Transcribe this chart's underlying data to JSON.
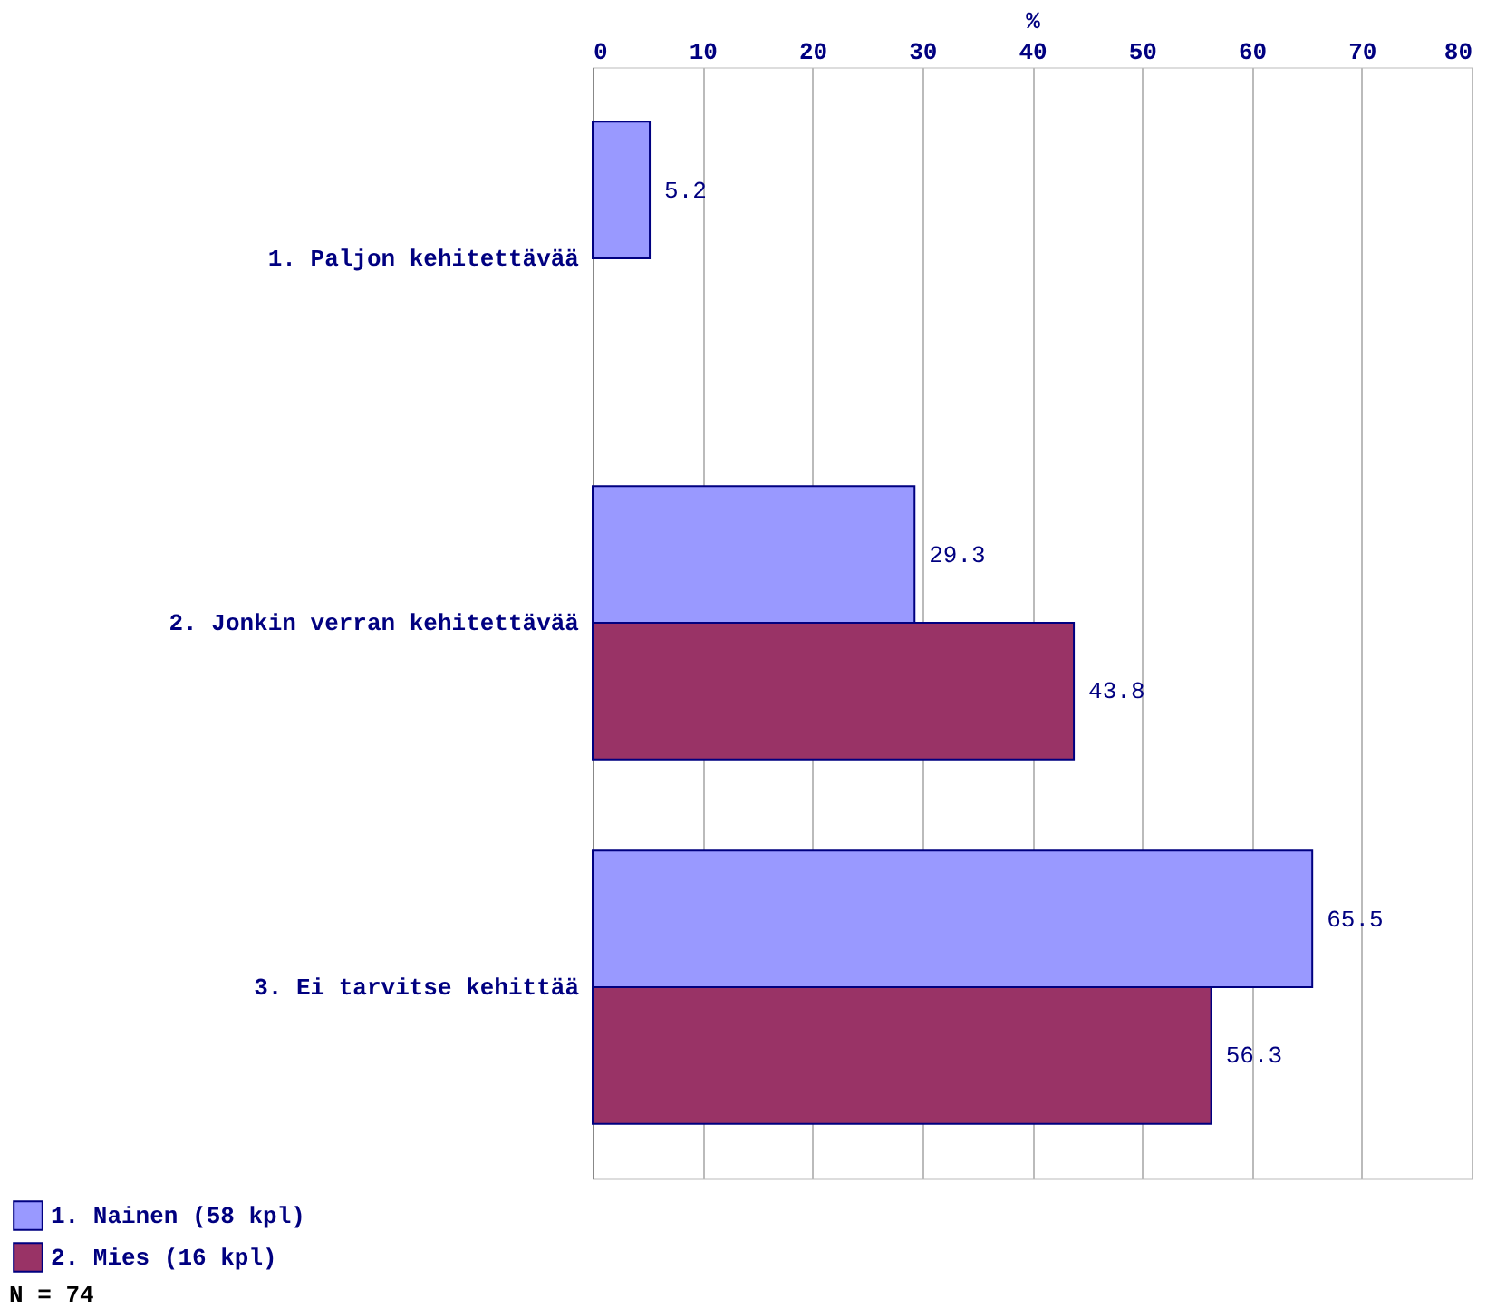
{
  "chart_data": {
    "type": "bar",
    "orientation": "horizontal",
    "xlabel": "%",
    "categories": [
      "1. Paljon kehitettävää",
      "2. Jonkin verran kehitettävää",
      "3. Ei tarvitse kehittää"
    ],
    "series": [
      {
        "name": "1. Nainen  (58 kpl)",
        "color": "#9999ff",
        "values": [
          5.2,
          29.3,
          65.5
        ]
      },
      {
        "name": "2. Mies  (16 kpl)",
        "color": "#993366",
        "values": [
          null,
          43.8,
          56.3
        ]
      }
    ],
    "xlim": [
      0,
      80
    ],
    "xticks": [
      0,
      10,
      20,
      30,
      40,
      50,
      60,
      70,
      80
    ],
    "grid": "x",
    "data_labels": true,
    "legend": "bottom left",
    "annotations": [
      "N = 74"
    ]
  }
}
